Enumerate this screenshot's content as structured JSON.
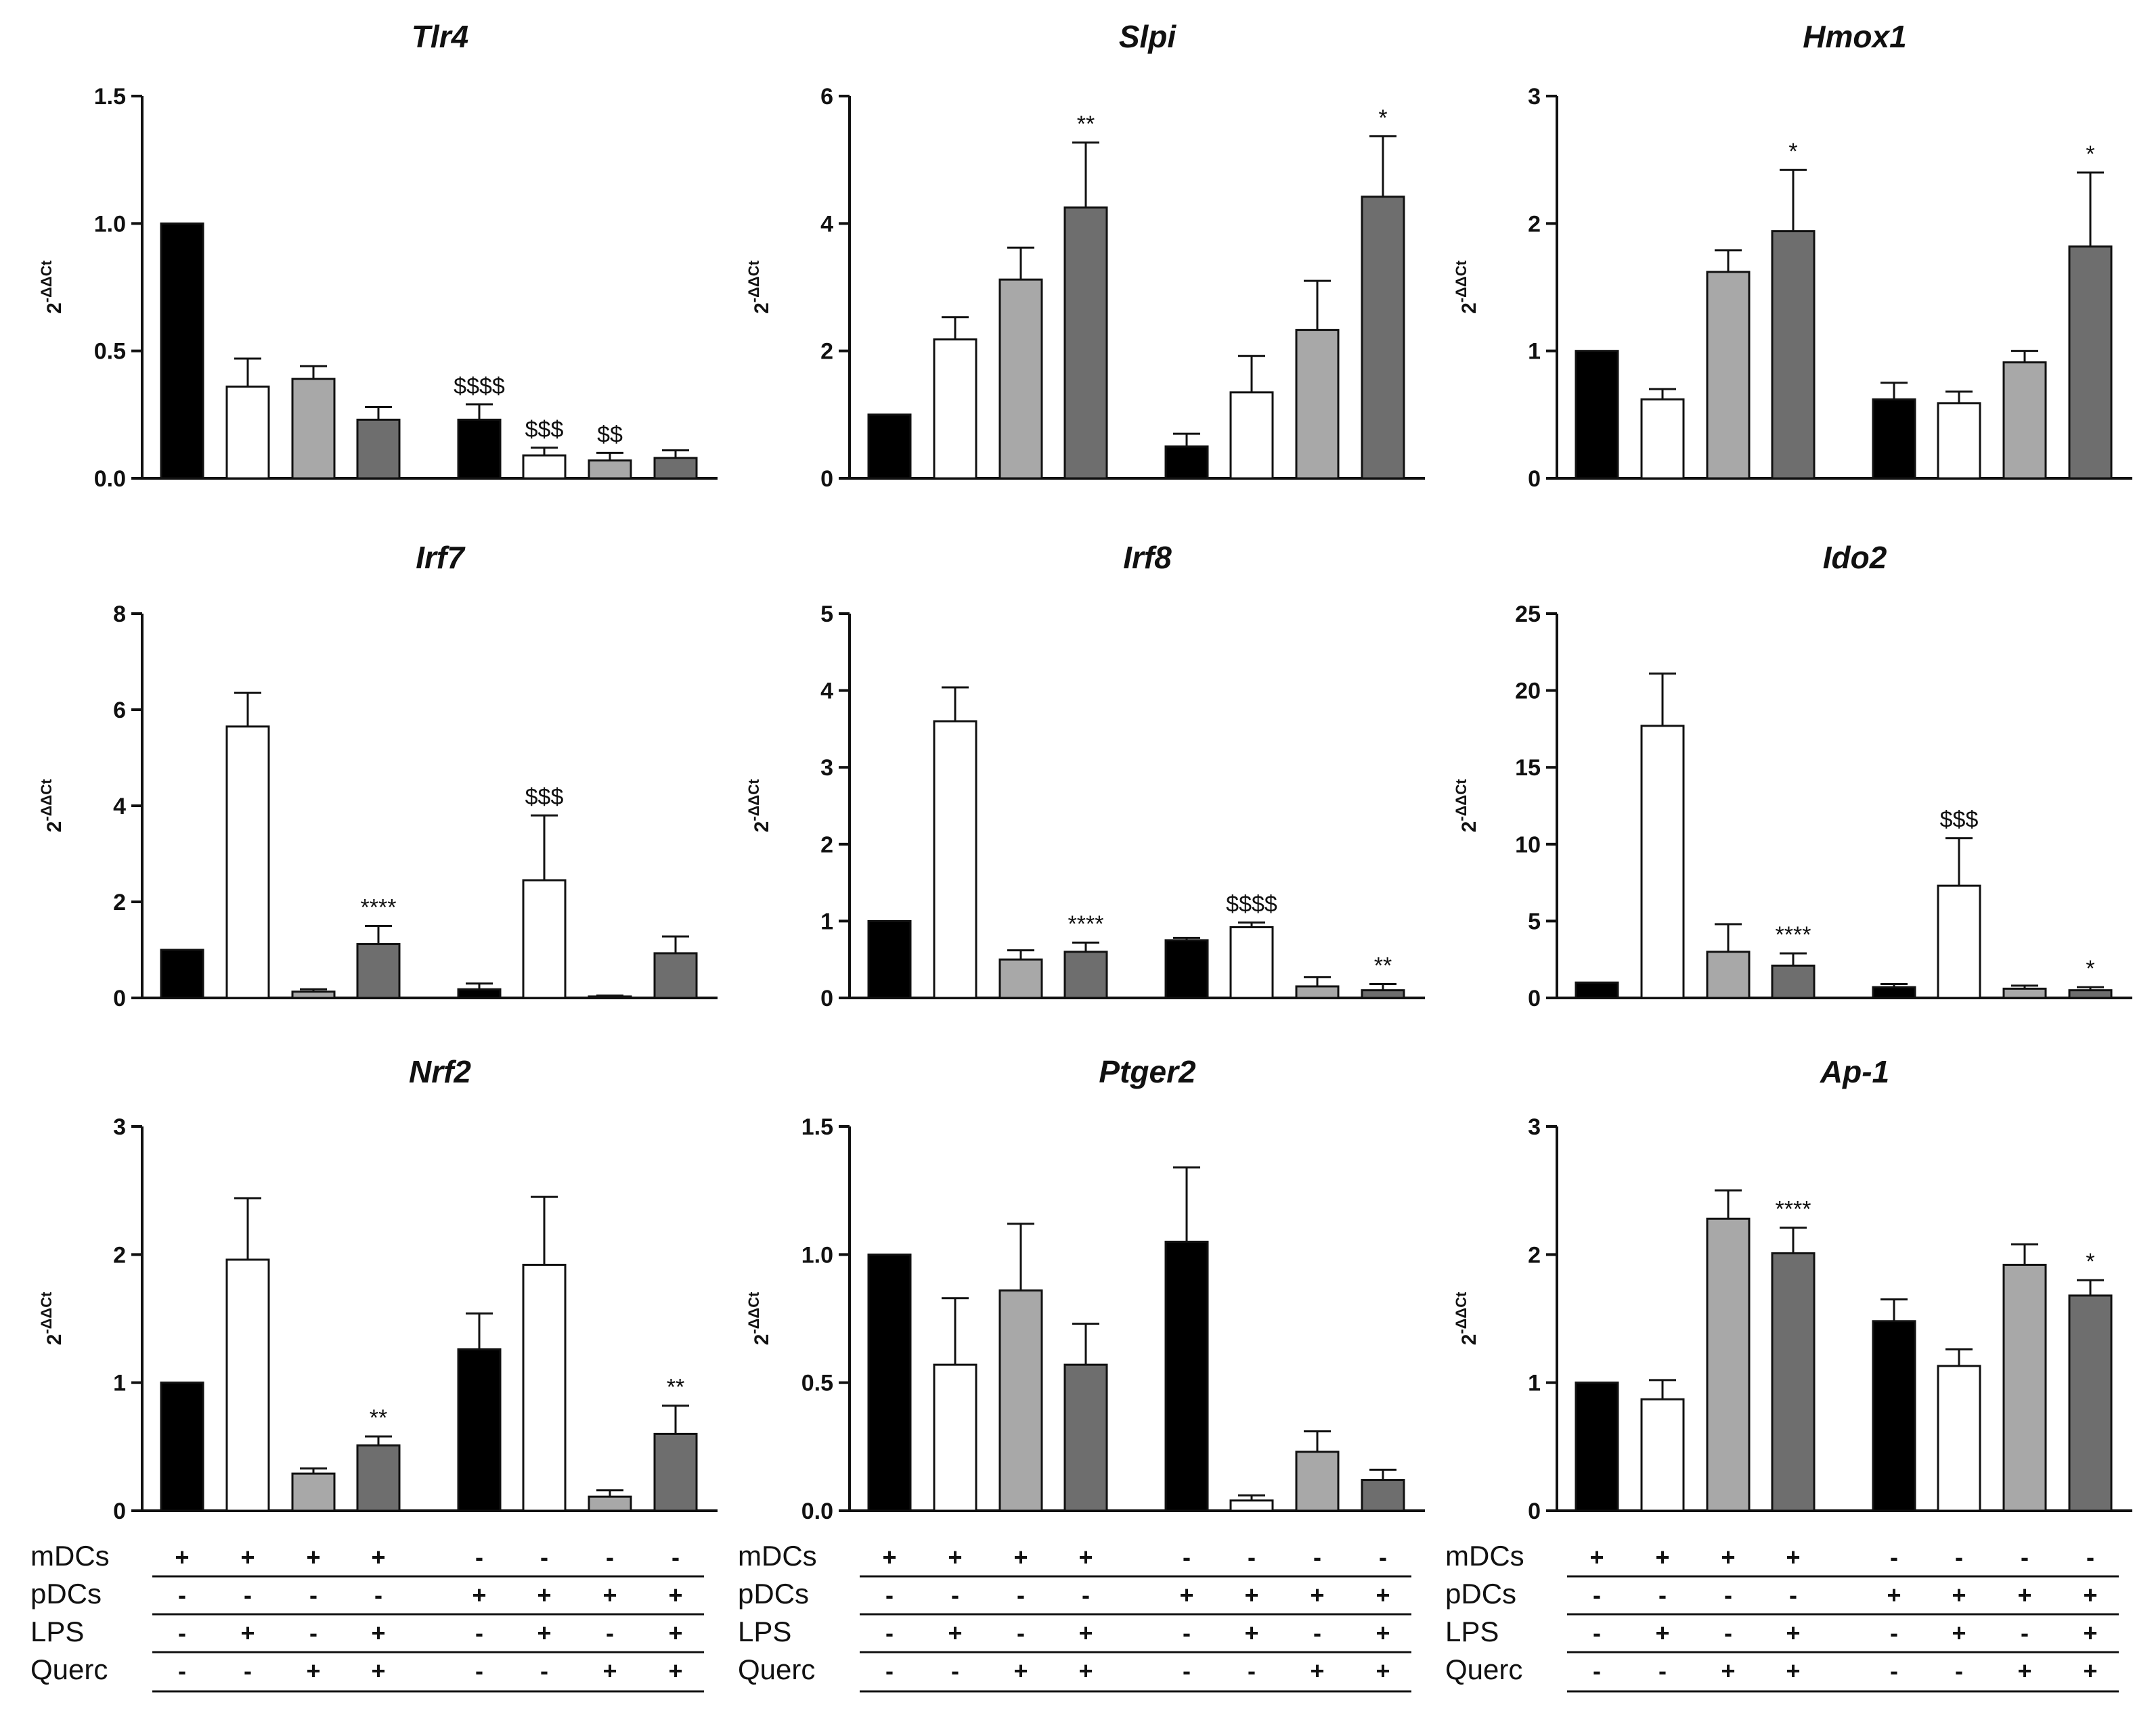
{
  "figure": {
    "ylabel_base": "2",
    "ylabel_exp": "-ΔΔCt",
    "colors": {
      "mDC_ctrl": "#000000",
      "LPS": "#ffffff",
      "Querc": "#a8a8a8",
      "LPS_Querc": "#6e6e6e"
    }
  },
  "chart_data": [
    {
      "type": "bar",
      "title": "Tlr4",
      "ylabel": "2-ΔΔCt",
      "ylim": [
        0,
        1.5
      ],
      "yticks": [
        "0.0",
        "0.5",
        "1.0",
        "1.5"
      ],
      "ytick_values": [
        0,
        0.5,
        1.0,
        1.5
      ],
      "categories": [
        "mDCs",
        "mDCs+LPS",
        "mDCs+Querc",
        "mDCs+LPS+Querc",
        "pDCs",
        "pDCs+LPS",
        "pDCs+Querc",
        "pDCs+LPS+Querc"
      ],
      "values": [
        1.0,
        0.36,
        0.39,
        0.23,
        0.23,
        0.09,
        0.07,
        0.08
      ],
      "errors": [
        0,
        0.11,
        0.05,
        0.05,
        0.06,
        0.03,
        0.03,
        0.03
      ],
      "annotations": [
        "",
        "",
        "",
        "",
        "$$$$",
        "$$$",
        "$$",
        ""
      ]
    },
    {
      "type": "bar",
      "title": "Slpi",
      "ylabel": "2-ΔΔCt",
      "ylim": [
        0,
        6
      ],
      "yticks": [
        "0",
        "2",
        "4",
        "6"
      ],
      "ytick_values": [
        0,
        2,
        4,
        6
      ],
      "categories": [
        "mDCs",
        "mDCs+LPS",
        "mDCs+Querc",
        "mDCs+LPS+Querc",
        "pDCs",
        "pDCs+LPS",
        "pDCs+Querc",
        "pDCs+LPS+Querc"
      ],
      "values": [
        1.0,
        2.18,
        3.12,
        4.25,
        0.5,
        1.35,
        2.33,
        4.42
      ],
      "errors": [
        0,
        0.35,
        0.5,
        1.02,
        0.2,
        0.57,
        0.77,
        0.95
      ],
      "annotations": [
        "",
        "",
        "",
        "**",
        "",
        "",
        "",
        "*"
      ]
    },
    {
      "type": "bar",
      "title": "Hmox1",
      "ylabel": "2-ΔΔCt",
      "ylim": [
        0,
        3
      ],
      "yticks": [
        "0",
        "1",
        "2",
        "3"
      ],
      "ytick_values": [
        0,
        1,
        2,
        3
      ],
      "categories": [
        "mDCs",
        "mDCs+LPS",
        "mDCs+Querc",
        "mDCs+LPS+Querc",
        "pDCs",
        "pDCs+LPS",
        "pDCs+Querc",
        "pDCs+LPS+Querc"
      ],
      "values": [
        1.0,
        0.62,
        1.62,
        1.94,
        0.62,
        0.59,
        0.91,
        1.82
      ],
      "errors": [
        0,
        0.08,
        0.17,
        0.48,
        0.13,
        0.09,
        0.09,
        0.58
      ],
      "annotations": [
        "",
        "",
        "",
        "*",
        "",
        "",
        "",
        "*"
      ]
    },
    {
      "type": "bar",
      "title": "Irf7",
      "ylabel": "2-ΔΔCt",
      "ylim": [
        0,
        8
      ],
      "yticks": [
        "0",
        "2",
        "4",
        "6",
        "8"
      ],
      "ytick_values": [
        0,
        2,
        4,
        6,
        8
      ],
      "categories": [
        "mDCs",
        "mDCs+LPS",
        "mDCs+Querc",
        "mDCs+LPS+Querc",
        "pDCs",
        "pDCs+LPS",
        "pDCs+Querc",
        "pDCs+LPS+Querc"
      ],
      "values": [
        1.0,
        5.65,
        0.13,
        1.12,
        0.18,
        2.45,
        0.03,
        0.93
      ],
      "errors": [
        0,
        0.7,
        0.05,
        0.38,
        0.12,
        1.35,
        0.02,
        0.35
      ],
      "annotations": [
        "",
        "",
        "",
        "****",
        "",
        "$$$",
        "",
        ""
      ]
    },
    {
      "type": "bar",
      "title": "Irf8",
      "ylabel": "2-ΔΔCt",
      "ylim": [
        0,
        5
      ],
      "yticks": [
        "0",
        "1",
        "2",
        "3",
        "4",
        "5"
      ],
      "ytick_values": [
        0,
        1,
        2,
        3,
        4,
        5
      ],
      "categories": [
        "mDCs",
        "mDCs+LPS",
        "mDCs+Querc",
        "mDCs+LPS+Querc",
        "pDCs",
        "pDCs+LPS",
        "pDCs+Querc",
        "pDCs+LPS+Querc"
      ],
      "values": [
        1.0,
        3.6,
        0.5,
        0.6,
        0.75,
        0.92,
        0.15,
        0.1
      ],
      "errors": [
        0,
        0.44,
        0.12,
        0.12,
        0.03,
        0.06,
        0.12,
        0.08
      ],
      "annotations": [
        "",
        "",
        "",
        "****",
        "",
        "$$$$",
        "",
        "**"
      ]
    },
    {
      "type": "bar",
      "title": "Ido2",
      "ylabel": "2-ΔΔCt",
      "ylim": [
        0,
        25
      ],
      "yticks": [
        "0",
        "5",
        "10",
        "15",
        "20",
        "25"
      ],
      "ytick_values": [
        0,
        5,
        10,
        15,
        20,
        25
      ],
      "categories": [
        "mDCs",
        "mDCs+LPS",
        "mDCs+Querc",
        "mDCs+LPS+Querc",
        "pDCs",
        "pDCs+LPS",
        "pDCs+Querc",
        "pDCs+LPS+Querc"
      ],
      "values": [
        1.0,
        17.7,
        3.0,
        2.1,
        0.7,
        7.3,
        0.6,
        0.5
      ],
      "errors": [
        0,
        3.4,
        1.8,
        0.8,
        0.2,
        3.1,
        0.2,
        0.2
      ],
      "annotations": [
        "",
        "",
        "",
        "****",
        "",
        "$$$",
        "",
        "*"
      ]
    },
    {
      "type": "bar",
      "title": "Nrf2",
      "ylabel": "2-ΔΔCt",
      "ylim": [
        0,
        3
      ],
      "yticks": [
        "0",
        "1",
        "2",
        "3"
      ],
      "ytick_values": [
        0,
        1,
        2,
        3
      ],
      "categories": [
        "mDCs",
        "mDCs+LPS",
        "mDCs+Querc",
        "mDCs+LPS+Querc",
        "pDCs",
        "pDCs+LPS",
        "pDCs+Querc",
        "pDCs+LPS+Querc"
      ],
      "values": [
        1.0,
        1.96,
        0.29,
        0.51,
        1.26,
        1.92,
        0.11,
        0.6
      ],
      "errors": [
        0,
        0.48,
        0.04,
        0.07,
        0.28,
        0.53,
        0.05,
        0.22
      ],
      "annotations": [
        "",
        "",
        "",
        "**",
        "",
        "",
        "",
        "**"
      ]
    },
    {
      "type": "bar",
      "title": "Ptger2",
      "ylabel": "2-ΔΔCt",
      "ylim": [
        0,
        1.5
      ],
      "yticks": [
        "0.0",
        "0.5",
        "1.0",
        "1.5"
      ],
      "ytick_values": [
        0,
        0.5,
        1.0,
        1.5
      ],
      "categories": [
        "mDCs",
        "mDCs+LPS",
        "mDCs+Querc",
        "mDCs+LPS+Querc",
        "pDCs",
        "pDCs+LPS",
        "pDCs+Querc",
        "pDCs+LPS+Querc"
      ],
      "values": [
        1.0,
        0.57,
        0.86,
        0.57,
        1.05,
        0.04,
        0.23,
        0.12
      ],
      "errors": [
        0,
        0.26,
        0.26,
        0.16,
        0.29,
        0.02,
        0.08,
        0.04
      ],
      "annotations": [
        "",
        "",
        "",
        "",
        "",
        "",
        "",
        ""
      ]
    },
    {
      "type": "bar",
      "title": "Ap-1",
      "ylabel": "2-ΔΔCt",
      "ylim": [
        0,
        3
      ],
      "yticks": [
        "0",
        "1",
        "2",
        "3"
      ],
      "ytick_values": [
        0,
        1,
        2,
        3
      ],
      "categories": [
        "mDCs",
        "mDCs+LPS",
        "mDCs+Querc",
        "mDCs+LPS+Querc",
        "pDCs",
        "pDCs+LPS",
        "pDCs+Querc",
        "pDCs+LPS+Querc"
      ],
      "values": [
        1.0,
        0.87,
        2.28,
        2.01,
        1.48,
        1.13,
        1.92,
        1.68
      ],
      "errors": [
        0,
        0.15,
        0.22,
        0.2,
        0.17,
        0.13,
        0.16,
        0.12
      ],
      "annotations": [
        "",
        "",
        "",
        "****",
        "",
        "",
        "",
        "*"
      ]
    }
  ],
  "treatment_table": {
    "rows": [
      {
        "label": "mDCs",
        "signs": [
          "+",
          "+",
          "+",
          "+",
          "-",
          "-",
          "-",
          "-"
        ]
      },
      {
        "label": "pDCs",
        "signs": [
          "-",
          "-",
          "-",
          "-",
          "+",
          "+",
          "+",
          "+"
        ]
      },
      {
        "label": "LPS",
        "signs": [
          "-",
          "+",
          "-",
          "+",
          "-",
          "+",
          "-",
          "+"
        ]
      },
      {
        "label": "Querc",
        "signs": [
          "-",
          "-",
          "+",
          "+",
          "-",
          "-",
          "+",
          "+"
        ]
      }
    ]
  }
}
